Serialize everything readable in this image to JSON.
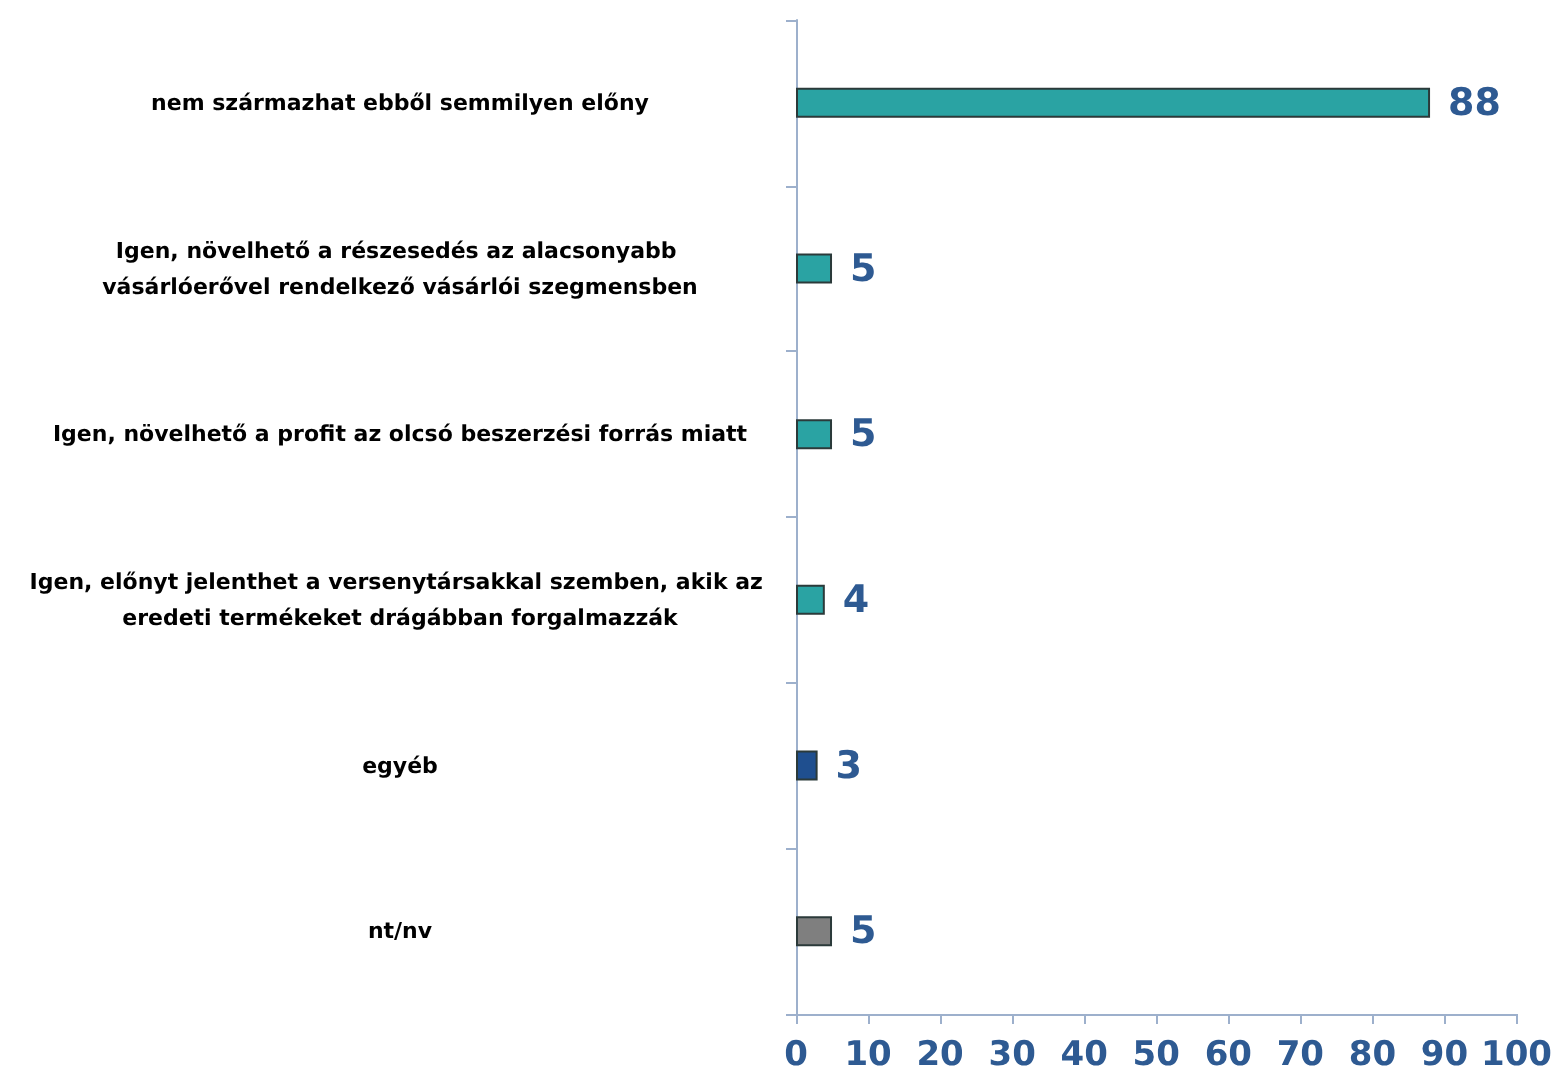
{
  "chart_data": {
    "type": "bar",
    "orientation": "horizontal",
    "categories": [
      "nem származhat ebből semmilyen előny",
      "Igen, növelhető a részesedés az alacsonyabb vásárlóerővel rendelkező vásárlói szegmensben",
      "Igen, növelhető a profit az olcsó beszerzési forrás miatt",
      "Igen, előnyt jelenthet a versenytársakkal szemben, akik az eredeti termékeket drágábban forgalmazzák",
      "egyéb",
      "nt/nv"
    ],
    "values": [
      88,
      5,
      5,
      4,
      3,
      5
    ],
    "colors": [
      "#2aa3a3",
      "#2aa3a3",
      "#2aa3a3",
      "#2aa3a3",
      "#1f4f8f",
      "#7f7f7f"
    ],
    "xlim": [
      0,
      100
    ],
    "xticks": [
      0,
      10,
      20,
      30,
      40,
      50,
      60,
      70,
      80,
      90,
      100
    ],
    "data_labels": true
  }
}
